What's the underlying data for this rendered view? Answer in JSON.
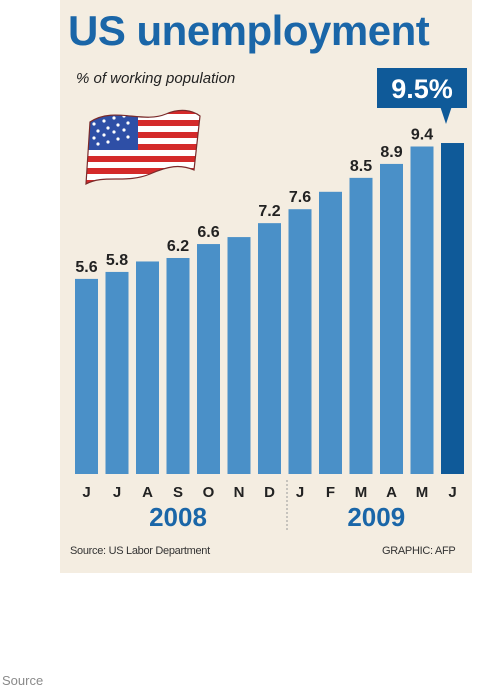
{
  "graphic": {
    "title": "US unemployment",
    "subtitle": "% of working population",
    "source": "Source: US Labor Department",
    "credit": "GRAPHIC: AFP",
    "callout": "9.5%"
  },
  "footer": {
    "text": "Source"
  },
  "flag": {
    "name": "us-flag-icon"
  },
  "chart_data": {
    "type": "bar",
    "categories": [
      "J",
      "J",
      "A",
      "S",
      "O",
      "N",
      "D",
      "J",
      "F",
      "M",
      "A",
      "M",
      "J"
    ],
    "values": [
      5.6,
      5.8,
      6.1,
      6.2,
      6.6,
      6.8,
      7.2,
      7.6,
      8.1,
      8.5,
      8.9,
      9.4,
      9.5
    ],
    "data_labels": [
      "5.6",
      "5.8",
      "",
      "6.2",
      "6.6",
      "",
      "7.2",
      "7.6",
      "",
      "8.5",
      "8.9",
      "9.4",
      ""
    ],
    "year_groups": [
      {
        "label": "2008",
        "start": 0,
        "end": 6
      },
      {
        "label": "2009",
        "start": 7,
        "end": 12
      }
    ],
    "highlight_index": 12,
    "xlabel": "",
    "ylabel": "",
    "grid": false,
    "colors": {
      "bar": "#4a90c8",
      "highlight": "#0f5a99",
      "year": "#1a66a8"
    }
  }
}
